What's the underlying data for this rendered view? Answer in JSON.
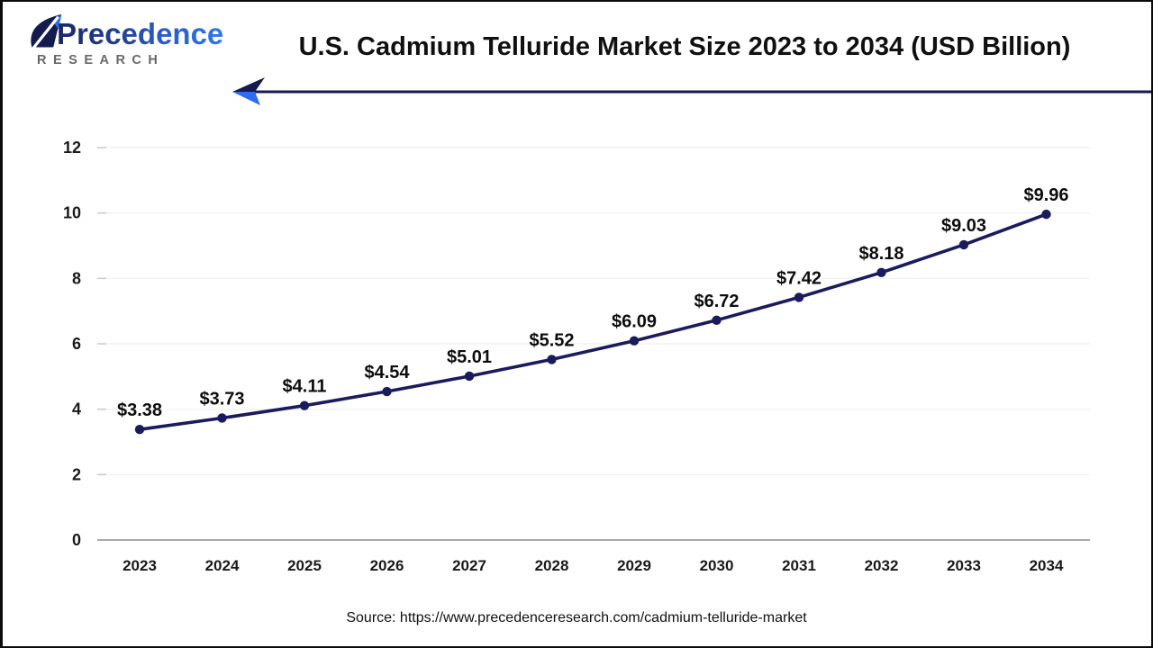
{
  "brand": {
    "wordmark": "Precedence",
    "subtext": "RESEARCH"
  },
  "header": {
    "title": "U.S. Cadmium Telluride Market Size 2023 to 2034 (USD Billion)"
  },
  "footer": {
    "source": "Source: https://www.precedenceresearch.com/cadmium-telluride-market"
  },
  "colors": {
    "series_navy": "#1a1b5e",
    "arrow_navy": "#161a4e",
    "arrow_blue": "#2c6bf2",
    "logo_navy": "#141b4e",
    "logo_blue": "#2d6ce8",
    "grid": "#efefef",
    "tick": "#c9c9c9",
    "axis_zero": "#a9a9a9",
    "text": "#111111"
  },
  "chart_data": {
    "type": "line",
    "title": "U.S. Cadmium Telluride Market Size 2023 to 2034 (USD Billion)",
    "categories": [
      "2023",
      "2024",
      "2025",
      "2026",
      "2027",
      "2028",
      "2029",
      "2030",
      "2031",
      "2032",
      "2033",
      "2034"
    ],
    "values": [
      3.38,
      3.73,
      4.11,
      4.54,
      5.01,
      5.52,
      6.09,
      6.72,
      7.42,
      8.18,
      9.03,
      9.96
    ],
    "point_labels": [
      "$3.38",
      "$3.73",
      "$4.11",
      "$4.54",
      "$5.01",
      "$5.52",
      "$6.09",
      "$6.72",
      "$7.42",
      "$8.18",
      "$9.03",
      "$9.96"
    ],
    "xlabel": "",
    "ylabel": "",
    "ylim": [
      0,
      12
    ],
    "yticks": [
      0,
      2,
      4,
      6,
      8,
      10,
      12
    ],
    "grid": true,
    "legend": false,
    "series_color": "#1a1b5e",
    "marker": "circle"
  }
}
